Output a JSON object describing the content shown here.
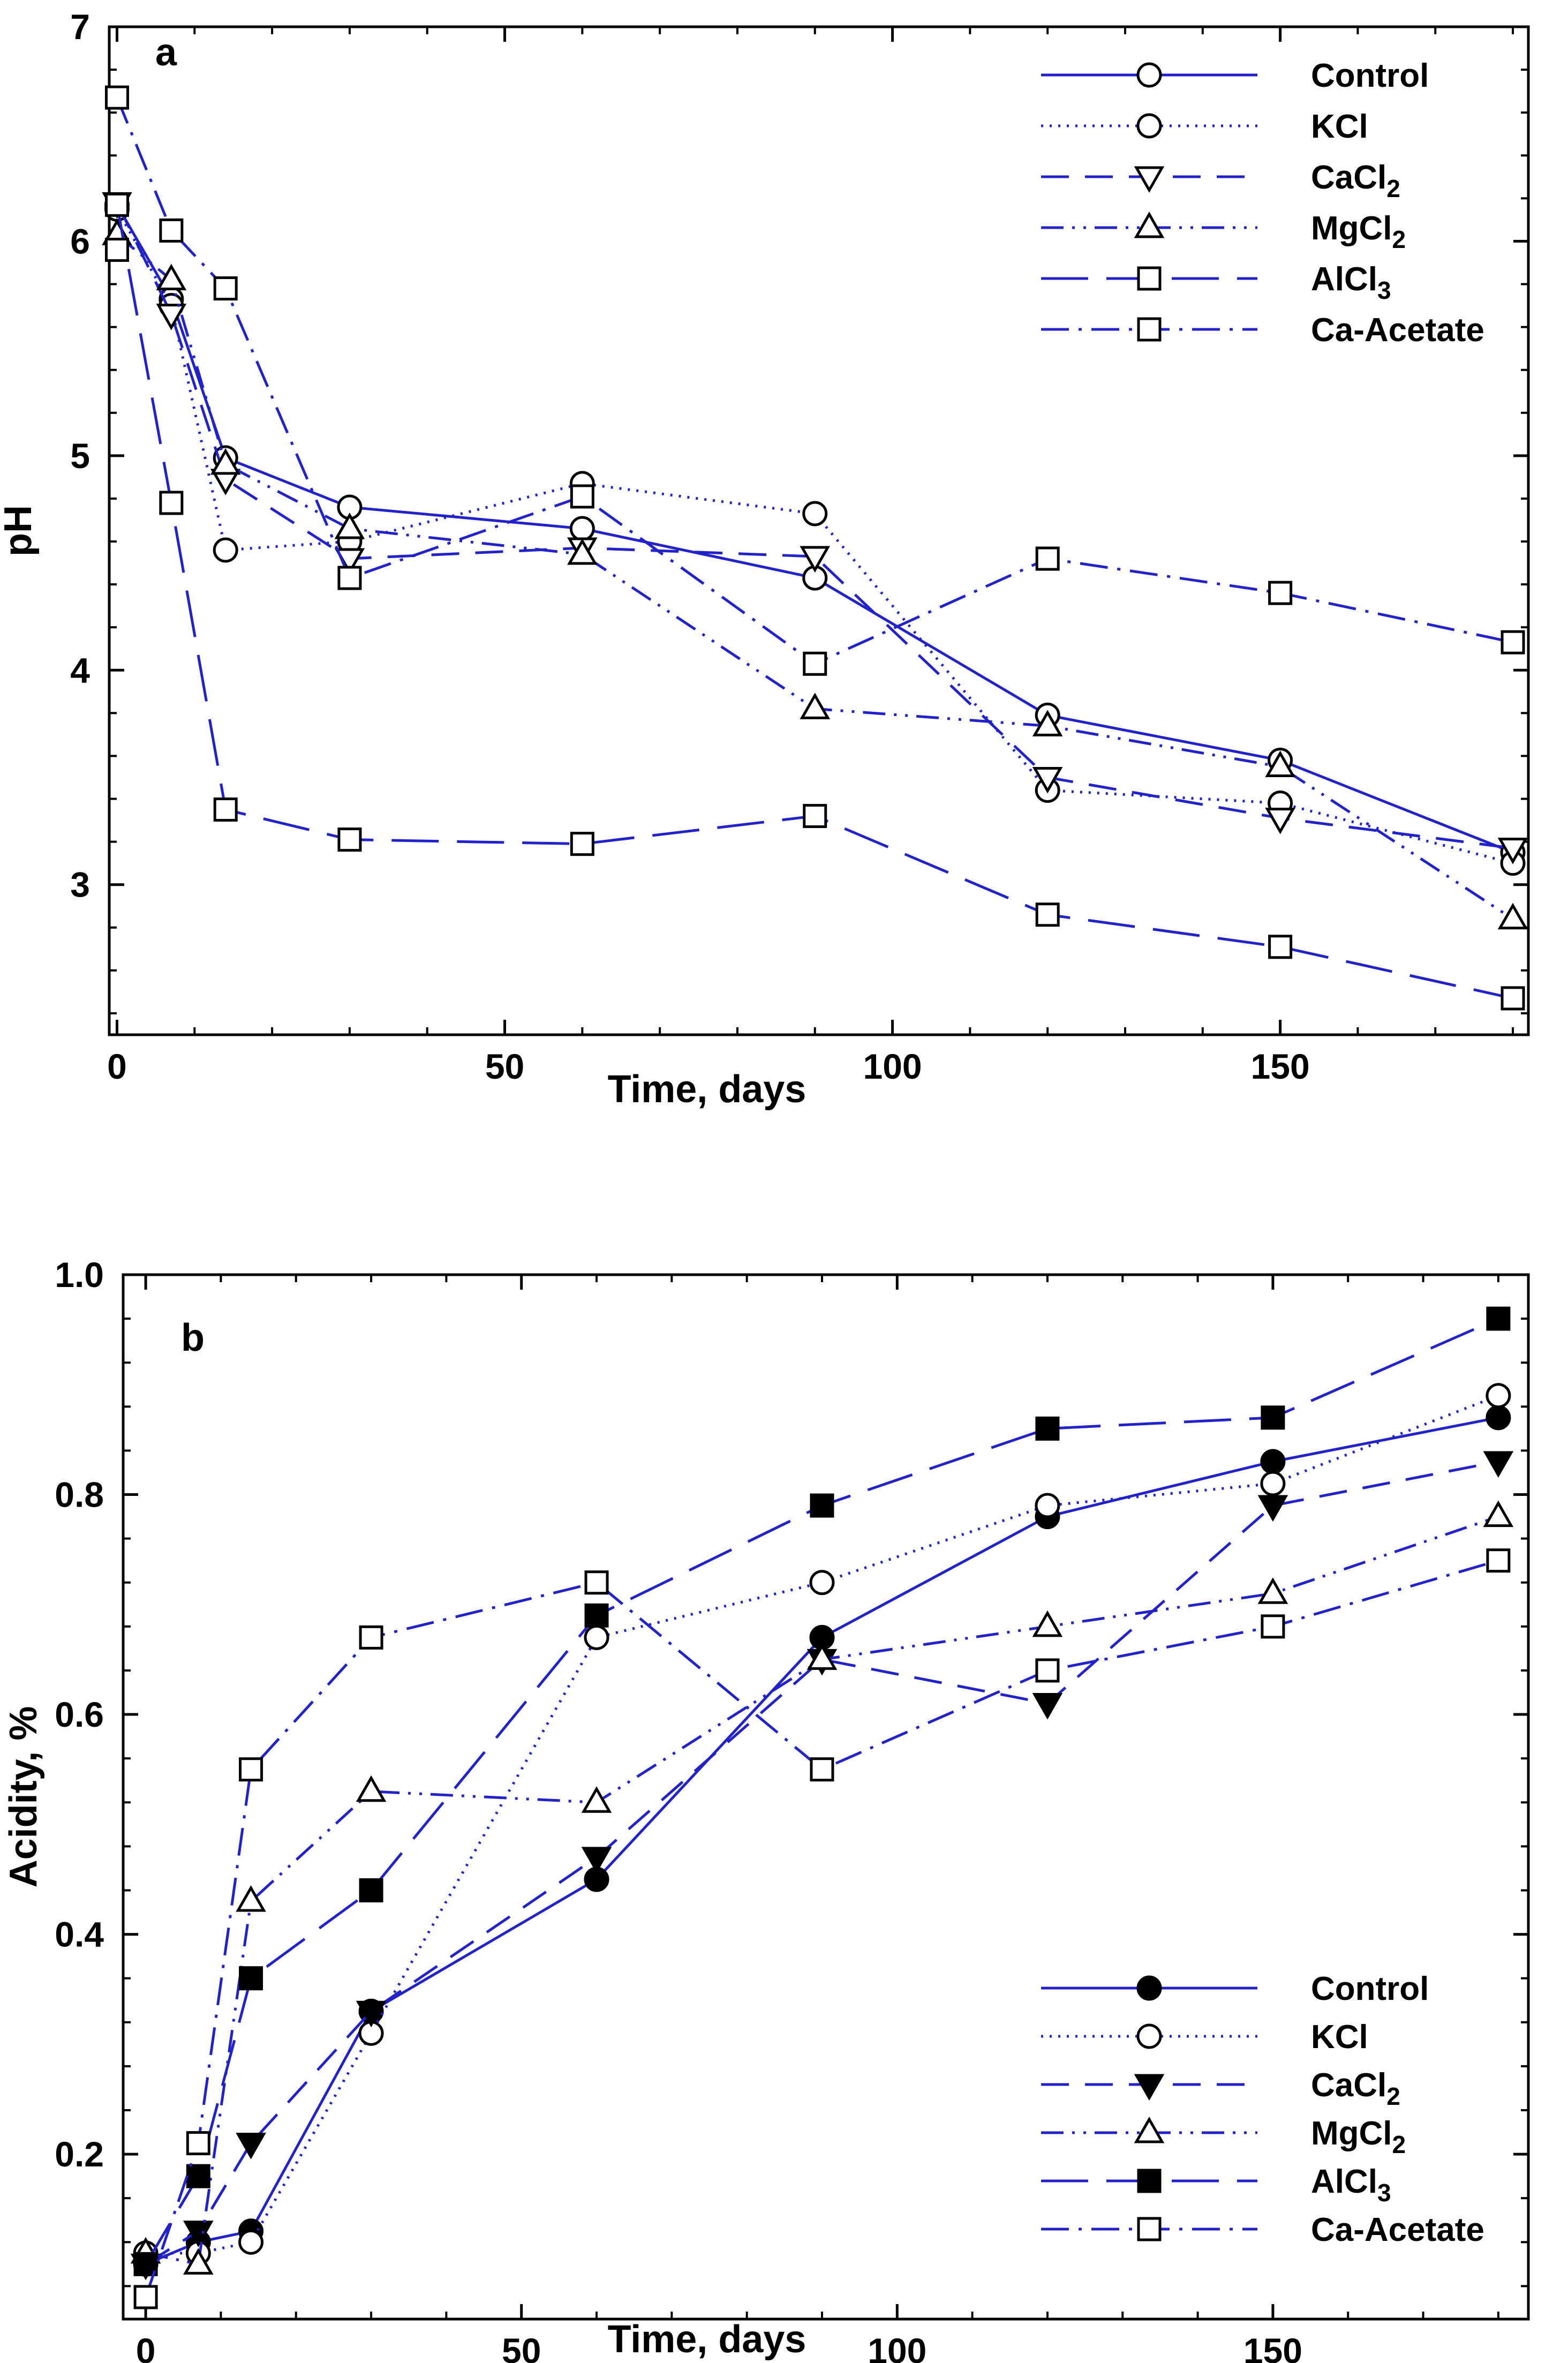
{
  "colors": {
    "series": "#2222cc",
    "axes": "#000000",
    "background": "#ffffff"
  },
  "chart_data": [
    {
      "type": "line",
      "panel_label": "a",
      "xlabel": "Time, days",
      "ylabel": "pH",
      "xlim": [
        -1,
        182
      ],
      "ylim": [
        2.3,
        7.0
      ],
      "xticks": [
        0,
        50,
        100,
        150
      ],
      "yticks": [
        3,
        4,
        5,
        6,
        7
      ],
      "grid": false,
      "legend_position": "top-right",
      "series": [
        {
          "name": "Control",
          "sub": "",
          "line_style": "solid",
          "marker": "circle",
          "marker_fill": "none",
          "x": [
            0,
            7,
            14,
            30,
            60,
            90,
            120,
            150,
            180
          ],
          "y": [
            6.17,
            5.73,
            4.99,
            4.76,
            4.66,
            4.43,
            3.79,
            3.58,
            3.15
          ]
        },
        {
          "name": "KCl",
          "sub": "",
          "line_style": "dotted",
          "marker": "circle",
          "marker_fill": "none",
          "x": [
            0,
            7,
            14,
            30,
            60,
            90,
            120,
            150,
            180
          ],
          "y": [
            6.15,
            5.7,
            4.56,
            4.6,
            4.87,
            4.73,
            3.44,
            3.38,
            3.1
          ]
        },
        {
          "name": "CaCl",
          "sub": "2",
          "line_style": "dashed",
          "marker": "triangle-down",
          "marker_fill": "none",
          "x": [
            0,
            7,
            14,
            30,
            60,
            90,
            120,
            150,
            180
          ],
          "y": [
            6.18,
            5.66,
            4.89,
            4.52,
            4.57,
            4.53,
            3.5,
            3.31,
            3.17
          ]
        },
        {
          "name": "MgCl",
          "sub": "2",
          "line_style": "dash-dot-dot",
          "marker": "triangle-up",
          "marker_fill": "none",
          "x": [
            0,
            7,
            14,
            30,
            60,
            90,
            120,
            150,
            180
          ],
          "y": [
            6.03,
            5.82,
            4.96,
            4.66,
            4.54,
            3.82,
            3.74,
            3.55,
            2.84
          ]
        },
        {
          "name": "AlCl",
          "sub": "3",
          "line_style": "long-dash",
          "marker": "square",
          "marker_fill": "none",
          "x": [
            0,
            7,
            14,
            30,
            60,
            90,
            120,
            150,
            180
          ],
          "y": [
            6.17,
            4.78,
            3.35,
            3.21,
            3.19,
            3.32,
            2.86,
            2.71,
            2.47
          ]
        },
        {
          "name": "Ca-Acetate",
          "sub": "",
          "line_style": "dash-dot",
          "marker": "square",
          "marker_fill": "none",
          "x": [
            0,
            7,
            14,
            30,
            60,
            90,
            120,
            150,
            180
          ],
          "y": [
            6.67,
            6.05,
            5.78,
            4.43,
            4.81,
            4.03,
            4.52,
            4.36,
            4.13
          ]
        },
        {
          "name": "",
          "sub": "",
          "line_style": "none",
          "marker": "square",
          "marker_fill": "none",
          "x": [
            0
          ],
          "y": [
            5.96
          ]
        }
      ]
    },
    {
      "type": "line",
      "panel_label": "b",
      "xlabel": "Time, days",
      "ylabel": "Acidity, %",
      "xlim": [
        -3,
        184
      ],
      "ylim": [
        0.05,
        1.0
      ],
      "xticks": [
        0,
        50,
        100,
        150
      ],
      "yticks": [
        0.2,
        0.4,
        0.6,
        0.8,
        1.0
      ],
      "ytick_labels": [
        "0.2",
        "0.4",
        "0.6",
        "0.8",
        "1.0"
      ],
      "grid": false,
      "legend_position": "bottom-right",
      "series": [
        {
          "name": "Control",
          "sub": "",
          "line_style": "solid",
          "marker": "circle",
          "marker_fill": "filled",
          "x": [
            0,
            7,
            14,
            30,
            60,
            90,
            120,
            150,
            180
          ],
          "y": [
            0.1,
            0.12,
            0.13,
            0.33,
            0.45,
            0.67,
            0.78,
            0.83,
            0.87
          ]
        },
        {
          "name": "KCl",
          "sub": "",
          "line_style": "dotted",
          "marker": "circle",
          "marker_fill": "none",
          "x": [
            0,
            7,
            14,
            30,
            60,
            90,
            120,
            150,
            180
          ],
          "y": [
            0.11,
            0.11,
            0.12,
            0.31,
            0.67,
            0.72,
            0.79,
            0.81,
            0.89
          ]
        },
        {
          "name": "CaCl",
          "sub": "2",
          "line_style": "dashed",
          "marker": "triangle-down",
          "marker_fill": "filled",
          "x": [
            0,
            7,
            14,
            30,
            60,
            90,
            120,
            150,
            180
          ],
          "y": [
            0.1,
            0.13,
            0.21,
            0.33,
            0.47,
            0.65,
            0.61,
            0.79,
            0.83
          ]
        },
        {
          "name": "MgCl",
          "sub": "2",
          "line_style": "dash-dot-dot",
          "marker": "triangle-up",
          "marker_fill": "none",
          "x": [
            0,
            7,
            14,
            30,
            60,
            90,
            120,
            150,
            180
          ],
          "y": [
            0.11,
            0.1,
            0.43,
            0.53,
            0.52,
            0.65,
            0.68,
            0.71,
            0.78
          ]
        },
        {
          "name": "AlCl",
          "sub": "3",
          "line_style": "long-dash",
          "marker": "square",
          "marker_fill": "filled",
          "x": [
            0,
            7,
            14,
            30,
            60,
            90,
            120,
            150,
            180
          ],
          "y": [
            0.1,
            0.18,
            0.36,
            0.44,
            0.69,
            0.79,
            0.86,
            0.87,
            0.96
          ]
        },
        {
          "name": "Ca-Acetate",
          "sub": "",
          "line_style": "dash-dot",
          "marker": "square",
          "marker_fill": "none",
          "x": [
            0,
            7,
            14,
            30,
            60,
            90,
            120,
            150,
            180
          ],
          "y": [
            0.07,
            0.21,
            0.55,
            0.67,
            0.72,
            0.55,
            0.64,
            0.68,
            0.74
          ]
        }
      ]
    }
  ]
}
